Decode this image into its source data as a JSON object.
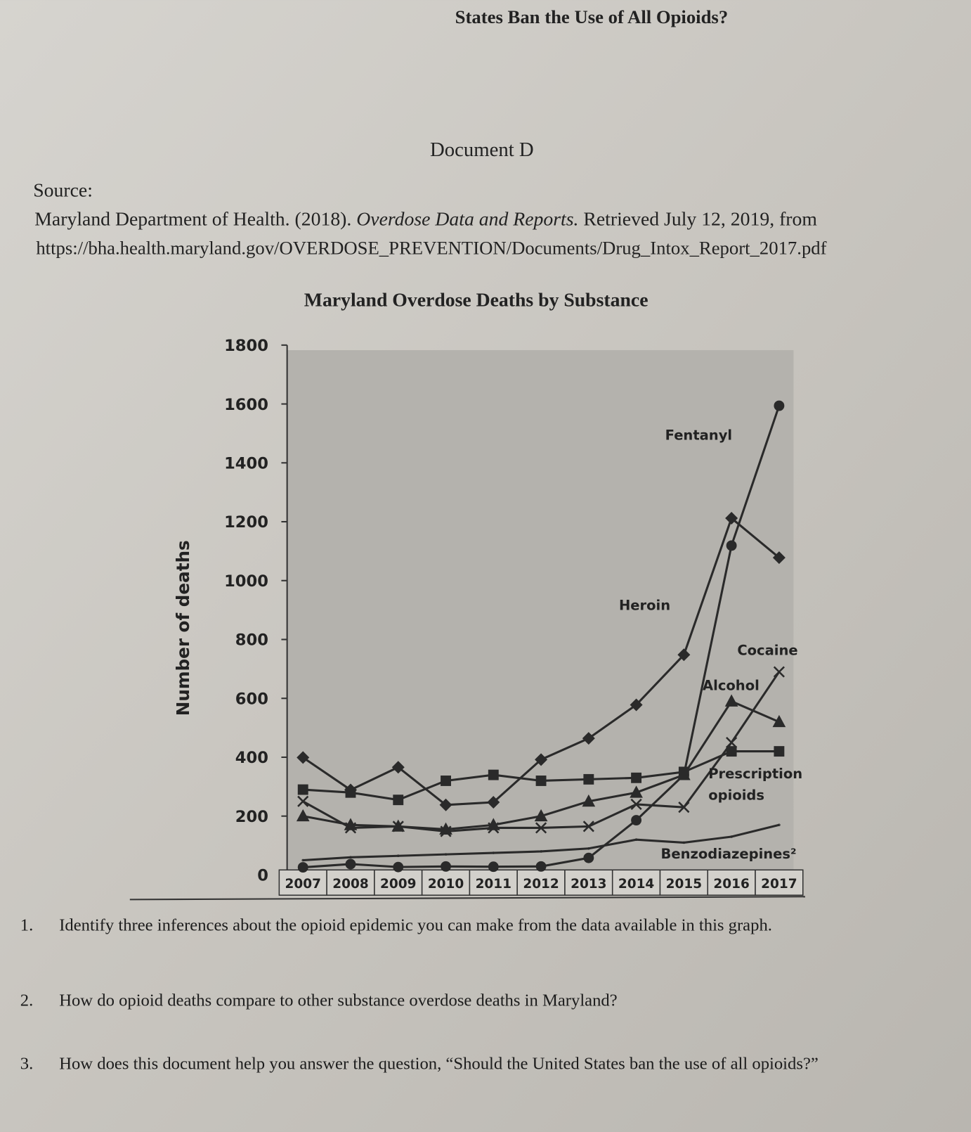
{
  "header": {
    "title": "States Ban the Use of All Opioids?",
    "document": "Document D"
  },
  "source": {
    "label": "Source:",
    "author": "Maryland Department of Health. (2018).",
    "work": "Overdose Data and Reports.",
    "retrieved": "Retrieved July 12, 2019, from",
    "url": "https://bha.health.maryland.gov/OVERDOSE_PREVENTION/Documents/Drug_Intox_Report_2017.pdf"
  },
  "chart_data": {
    "type": "line",
    "title": "Maryland Overdose Deaths by Substance",
    "y_label": "Number of deaths",
    "categories": [
      "2007",
      "2008",
      "2009",
      "2010",
      "2011",
      "2012",
      "2013",
      "2014",
      "2015",
      "2016",
      "2017"
    ],
    "ylim": [
      0,
      1800
    ],
    "yticks": [
      0,
      200,
      400,
      600,
      800,
      1000,
      1200,
      1400,
      1600,
      1800
    ],
    "series": [
      {
        "name": "Fentanyl",
        "color": "#2a2a2a",
        "marker": "circle",
        "values": [
          26,
          37,
          27,
          29,
          28,
          29,
          58,
          186,
          340,
          1119,
          1594
        ]
      },
      {
        "name": "Heroin",
        "color": "#2a2a2a",
        "marker": "diamond",
        "values": [
          399,
          289,
          366,
          238,
          247,
          392,
          464,
          578,
          748,
          1212,
          1078
        ]
      },
      {
        "name": "Cocaine",
        "color": "#2a2a2a",
        "marker": "x",
        "values": [
          250,
          160,
          165,
          148,
          160,
          160,
          165,
          240,
          230,
          450,
          690
        ]
      },
      {
        "name": "Alcohol",
        "color": "#2a2a2a",
        "marker": "triangle",
        "values": [
          200,
          170,
          165,
          155,
          170,
          200,
          250,
          280,
          340,
          590,
          520
        ]
      },
      {
        "name": "Prescription opioids",
        "color": "#2a2a2a",
        "marker": "square",
        "values": [
          290,
          280,
          255,
          320,
          340,
          320,
          325,
          330,
          350,
          420,
          420
        ]
      },
      {
        "name": "Benzodiazepines²",
        "color": "#2a2a2a",
        "marker": "none",
        "values": [
          50,
          60,
          65,
          70,
          75,
          80,
          90,
          120,
          110,
          130,
          170
        ]
      }
    ]
  },
  "questions": [
    {
      "number": "1.",
      "text": "Identify three inferences about the opioid epidemic you can make from the data available in this graph."
    },
    {
      "number": "2.",
      "text": "How do opioid deaths compare to other substance overdose deaths in Maryland?"
    },
    {
      "number": "3.",
      "text": "How does this document help you answer the question, “Should the United States ban the use of all opioids?”"
    }
  ]
}
